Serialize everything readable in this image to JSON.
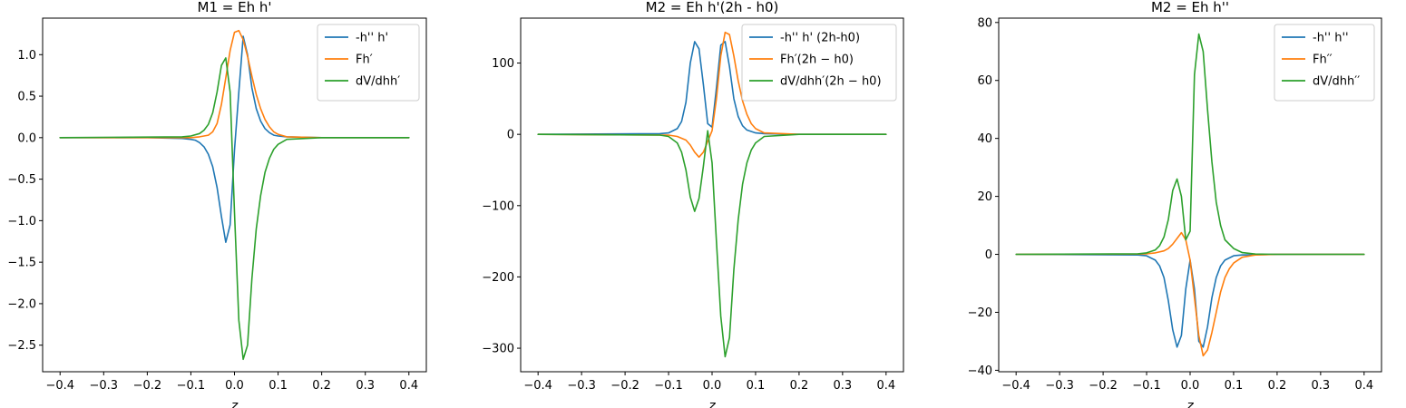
{
  "chart_data": [
    {
      "type": "line",
      "title": "M1 = Eh h'",
      "xlabel": "z",
      "ylabel": "",
      "xlim": [
        -0.44,
        0.44
      ],
      "ylim": [
        -2.82,
        1.44
      ],
      "xticks": [
        -0.4,
        -0.3,
        -0.2,
        -0.1,
        0.0,
        0.1,
        0.2,
        0.3,
        0.4
      ],
      "xtick_labels": [
        "−0.4",
        "−0.3",
        "−0.2",
        "−0.1",
        "0.0",
        "0.1",
        "0.2",
        "0.3",
        "0.4"
      ],
      "yticks": [
        -2.5,
        -2.0,
        -1.5,
        -1.0,
        -0.5,
        0.0,
        0.5,
        1.0
      ],
      "ytick_labels": [
        "−2.5",
        "−2.0",
        "−1.5",
        "−1.0",
        "−0.5",
        "0.0",
        "0.5",
        "1.0"
      ],
      "legend_position": "top-right",
      "series": [
        {
          "name": "-h'' h'",
          "color": "#1f77b4",
          "x": [
            -0.4,
            -0.2,
            -0.12,
            -0.1,
            -0.09,
            -0.08,
            -0.07,
            -0.06,
            -0.05,
            -0.04,
            -0.03,
            -0.02,
            -0.01,
            0.0,
            0.01,
            0.02,
            0.03,
            0.04,
            0.05,
            0.06,
            0.07,
            0.08,
            0.09,
            0.1,
            0.12,
            0.2,
            0.4
          ],
          "y": [
            0,
            0,
            -0.01,
            -0.02,
            -0.03,
            -0.06,
            -0.11,
            -0.2,
            -0.35,
            -0.6,
            -0.95,
            -1.26,
            -1.05,
            -0.15,
            0.55,
            1.22,
            1.0,
            0.6,
            0.35,
            0.2,
            0.11,
            0.06,
            0.03,
            0.02,
            0.01,
            0,
            0
          ]
        },
        {
          "name": "Fh′",
          "color": "#ff7f0e",
          "x": [
            -0.4,
            -0.1,
            -0.08,
            -0.06,
            -0.05,
            -0.04,
            -0.03,
            -0.02,
            -0.01,
            0.0,
            0.01,
            0.02,
            0.03,
            0.04,
            0.05,
            0.06,
            0.07,
            0.08,
            0.09,
            0.1,
            0.12,
            0.2,
            0.4
          ],
          "y": [
            0,
            0,
            0.01,
            0.03,
            0.07,
            0.17,
            0.4,
            0.72,
            1.05,
            1.27,
            1.29,
            1.18,
            0.98,
            0.74,
            0.52,
            0.35,
            0.22,
            0.13,
            0.07,
            0.04,
            0.01,
            0,
            0
          ]
        },
        {
          "name": "dV/dhh′",
          "color": "#2ca02c",
          "x": [
            -0.4,
            -0.12,
            -0.1,
            -0.08,
            -0.07,
            -0.06,
            -0.05,
            -0.04,
            -0.03,
            -0.02,
            -0.01,
            0.0,
            0.01,
            0.02,
            0.03,
            0.04,
            0.05,
            0.06,
            0.07,
            0.08,
            0.09,
            0.1,
            0.12,
            0.2,
            0.4
          ],
          "y": [
            0,
            0.01,
            0.02,
            0.05,
            0.09,
            0.16,
            0.3,
            0.55,
            0.87,
            0.96,
            0.55,
            -0.9,
            -2.2,
            -2.67,
            -2.5,
            -1.7,
            -1.1,
            -0.7,
            -0.42,
            -0.25,
            -0.14,
            -0.08,
            -0.02,
            0,
            0
          ]
        }
      ]
    },
    {
      "type": "line",
      "title": "M2 = Eh h'(2h - h0)",
      "xlabel": "z",
      "ylabel": "",
      "xlim": [
        -0.44,
        0.44
      ],
      "ylim": [
        -333,
        163
      ],
      "xticks": [
        -0.4,
        -0.3,
        -0.2,
        -0.1,
        0.0,
        0.1,
        0.2,
        0.3,
        0.4
      ],
      "xtick_labels": [
        "−0.4",
        "−0.3",
        "−0.2",
        "−0.1",
        "0.0",
        "0.1",
        "0.2",
        "0.3",
        "0.4"
      ],
      "yticks": [
        -300,
        -200,
        -100,
        0,
        100
      ],
      "ytick_labels": [
        "−300",
        "−200",
        "−100",
        "0",
        "100"
      ],
      "legend_position": "top-right",
      "series": [
        {
          "name": "-h'' h' (2h-h0)",
          "color": "#1f77b4",
          "x": [
            -0.4,
            -0.12,
            -0.1,
            -0.08,
            -0.07,
            -0.06,
            -0.05,
            -0.04,
            -0.03,
            -0.02,
            -0.01,
            0.0,
            0.01,
            0.02,
            0.03,
            0.04,
            0.05,
            0.06,
            0.07,
            0.08,
            0.1,
            0.12,
            0.2,
            0.4
          ],
          "y": [
            0,
            1,
            2,
            8,
            18,
            45,
            100,
            130,
            120,
            70,
            15,
            10,
            65,
            125,
            130,
            95,
            50,
            25,
            12,
            6,
            2,
            1,
            0,
            0
          ]
        },
        {
          "name": "Fh′(2h − h0)",
          "color": "#ff7f0e",
          "x": [
            -0.4,
            -0.1,
            -0.08,
            -0.06,
            -0.05,
            -0.04,
            -0.03,
            -0.02,
            -0.01,
            0.0,
            0.01,
            0.02,
            0.03,
            0.04,
            0.05,
            0.06,
            0.07,
            0.08,
            0.09,
            0.1,
            0.12,
            0.2,
            0.4
          ],
          "y": [
            0,
            -1,
            -3,
            -8,
            -15,
            -25,
            -32,
            -25,
            -10,
            5,
            50,
            110,
            143,
            140,
            110,
            75,
            47,
            28,
            15,
            8,
            2,
            0,
            0
          ]
        },
        {
          "name": "dV/dhh′(2h − h0)",
          "color": "#2ca02c",
          "x": [
            -0.4,
            -0.12,
            -0.1,
            -0.08,
            -0.07,
            -0.06,
            -0.05,
            -0.04,
            -0.03,
            -0.02,
            -0.01,
            0.0,
            0.01,
            0.02,
            0.03,
            0.04,
            0.05,
            0.06,
            0.07,
            0.08,
            0.09,
            0.1,
            0.12,
            0.2,
            0.4
          ],
          "y": [
            0,
            -1,
            -3,
            -12,
            -25,
            -50,
            -88,
            -108,
            -90,
            -45,
            5,
            -40,
            -150,
            -255,
            -312,
            -285,
            -190,
            -120,
            -70,
            -40,
            -22,
            -12,
            -3,
            0,
            0
          ]
        }
      ]
    },
    {
      "type": "line",
      "title": "M2 = Eh h''",
      "xlabel": "z",
      "ylabel": "",
      "xlim": [
        -0.44,
        0.44
      ],
      "ylim": [
        -40.5,
        81.5
      ],
      "xticks": [
        -0.4,
        -0.3,
        -0.2,
        -0.1,
        0.0,
        0.1,
        0.2,
        0.3,
        0.4
      ],
      "xtick_labels": [
        "−0.4",
        "−0.3",
        "−0.2",
        "−0.1",
        "0.0",
        "0.1",
        "0.2",
        "0.3",
        "0.4"
      ],
      "yticks": [
        -40,
        -20,
        0,
        20,
        40,
        60,
        80
      ],
      "ytick_labels": [
        "−40",
        "−20",
        "0",
        "20",
        "40",
        "60",
        "80"
      ],
      "legend_position": "top-right",
      "series": [
        {
          "name": "-h'' h''",
          "color": "#1f77b4",
          "x": [
            -0.4,
            -0.12,
            -0.1,
            -0.08,
            -0.07,
            -0.06,
            -0.05,
            -0.04,
            -0.03,
            -0.02,
            -0.01,
            0.0,
            0.01,
            0.02,
            0.03,
            0.04,
            0.05,
            0.06,
            0.07,
            0.08,
            0.1,
            0.12,
            0.2,
            0.4
          ],
          "y": [
            0,
            -0.2,
            -0.5,
            -2,
            -4,
            -8,
            -16,
            -26,
            -32,
            -28,
            -12,
            -2,
            -12,
            -30,
            -32,
            -25,
            -15,
            -8,
            -4,
            -2,
            -0.5,
            -0.2,
            0,
            0
          ]
        },
        {
          "name": "Fh′′",
          "color": "#ff7f0e",
          "x": [
            -0.4,
            -0.12,
            -0.1,
            -0.08,
            -0.06,
            -0.05,
            -0.04,
            -0.03,
            -0.02,
            -0.01,
            0.0,
            0.01,
            0.02,
            0.03,
            0.04,
            0.05,
            0.06,
            0.07,
            0.08,
            0.09,
            0.1,
            0.12,
            0.15,
            0.2,
            0.4
          ],
          "y": [
            0,
            0.1,
            0.2,
            0.5,
            1.2,
            2,
            3.5,
            5.5,
            7.5,
            5,
            -2,
            -15,
            -28,
            -35,
            -33,
            -27,
            -20,
            -13,
            -8,
            -5,
            -3,
            -1,
            -0.2,
            0,
            0
          ]
        },
        {
          "name": "dV/dhh′′",
          "color": "#2ca02c",
          "x": [
            -0.4,
            -0.12,
            -0.1,
            -0.08,
            -0.07,
            -0.06,
            -0.05,
            -0.04,
            -0.03,
            -0.02,
            -0.01,
            0.0,
            0.01,
            0.02,
            0.03,
            0.04,
            0.05,
            0.06,
            0.07,
            0.08,
            0.1,
            0.12,
            0.15,
            0.2,
            0.4
          ],
          "y": [
            0,
            0.2,
            0.5,
            1.5,
            3,
            6,
            12,
            22,
            26,
            20,
            5,
            8,
            62,
            76,
            70,
            50,
            32,
            18,
            10,
            5,
            2,
            0.6,
            0.1,
            0,
            0
          ]
        }
      ]
    }
  ]
}
